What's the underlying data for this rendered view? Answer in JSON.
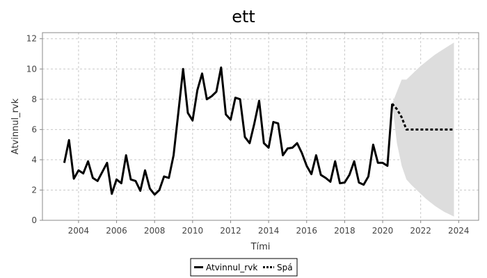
{
  "chart_data": {
    "type": "line",
    "title": "ett",
    "xlabel": "Tími",
    "ylabel": "Atvinnul_rvk",
    "xlim": [
      2002.1,
      2025.05
    ],
    "ylim": [
      0,
      12.4
    ],
    "x_ticks": [
      2004,
      2006,
      2008,
      2010,
      2012,
      2014,
      2016,
      2018,
      2020,
      2022,
      2024
    ],
    "y_ticks": [
      0,
      2,
      4,
      6,
      8,
      10,
      12
    ],
    "grid": true,
    "legend_position": "bottom-center",
    "colors": {
      "series": "#000000",
      "band": "#dddddd",
      "grid": "#c8c8c8"
    },
    "series": [
      {
        "name": "Atvinnul_rvk",
        "style": "solid",
        "x": [
          2003.25,
          2003.5,
          2003.75,
          2004.0,
          2004.25,
          2004.5,
          2004.75,
          2005.0,
          2005.25,
          2005.5,
          2005.75,
          2006.0,
          2006.25,
          2006.5,
          2006.75,
          2007.0,
          2007.25,
          2007.5,
          2007.75,
          2008.0,
          2008.25,
          2008.5,
          2008.75,
          2009.0,
          2009.25,
          2009.5,
          2009.75,
          2010.0,
          2010.25,
          2010.5,
          2010.75,
          2011.0,
          2011.25,
          2011.5,
          2011.75,
          2012.0,
          2012.25,
          2012.5,
          2012.75,
          2013.0,
          2013.25,
          2013.5,
          2013.75,
          2014.0,
          2014.25,
          2014.5,
          2014.75,
          2015.0,
          2015.25,
          2015.5,
          2015.75,
          2016.0,
          2016.25,
          2016.5,
          2016.75,
          2017.0,
          2017.25,
          2017.5,
          2017.75,
          2018.0,
          2018.25,
          2018.5,
          2018.75,
          2019.0,
          2019.25,
          2019.5,
          2019.75,
          2020.0,
          2020.25,
          2020.5
        ],
        "values": [
          3.8,
          5.3,
          2.75,
          3.3,
          3.1,
          3.9,
          2.8,
          2.6,
          3.2,
          3.8,
          1.75,
          2.7,
          2.45,
          4.3,
          2.7,
          2.6,
          1.95,
          3.3,
          2.1,
          1.7,
          2.0,
          2.9,
          2.8,
          4.3,
          7.1,
          10.0,
          7.1,
          6.6,
          8.6,
          9.7,
          8.0,
          8.2,
          8.5,
          10.1,
          7.0,
          6.65,
          8.1,
          8.0,
          5.5,
          5.1,
          6.4,
          7.9,
          5.1,
          4.8,
          6.5,
          6.4,
          4.3,
          4.75,
          4.8,
          5.1,
          4.45,
          3.6,
          3.05,
          4.3,
          3.0,
          2.8,
          2.55,
          3.9,
          2.45,
          2.5,
          3.0,
          3.9,
          2.5,
          2.35,
          2.9,
          5.0,
          3.8,
          3.8,
          3.6,
          7.7
        ]
      },
      {
        "name": "Spá",
        "style": "dotted",
        "x": [
          2020.5,
          2020.75,
          2021.0,
          2021.25,
          2021.5,
          2021.75,
          2022.0,
          2022.25,
          2022.5,
          2022.75,
          2023.0,
          2023.25,
          2023.5,
          2023.75
        ],
        "values": [
          7.7,
          7.35,
          6.8,
          6.0,
          6.0,
          6.0,
          6.0,
          6.0,
          6.0,
          6.0,
          6.0,
          6.0,
          6.0,
          6.0
        ]
      }
    ],
    "band": {
      "x": [
        2020.5,
        2020.75,
        2021.0,
        2021.25,
        2021.5,
        2021.75,
        2022.0,
        2022.25,
        2022.5,
        2022.75,
        2023.0,
        2023.25,
        2023.5,
        2023.75
      ],
      "upper": [
        7.7,
        8.5,
        9.3,
        9.3,
        9.6,
        9.9,
        10.2,
        10.45,
        10.7,
        10.95,
        11.15,
        11.35,
        11.55,
        11.75
      ],
      "lower": [
        7.7,
        5.1,
        3.6,
        2.7,
        2.35,
        2.05,
        1.75,
        1.45,
        1.2,
        0.95,
        0.75,
        0.55,
        0.4,
        0.25
      ]
    }
  }
}
